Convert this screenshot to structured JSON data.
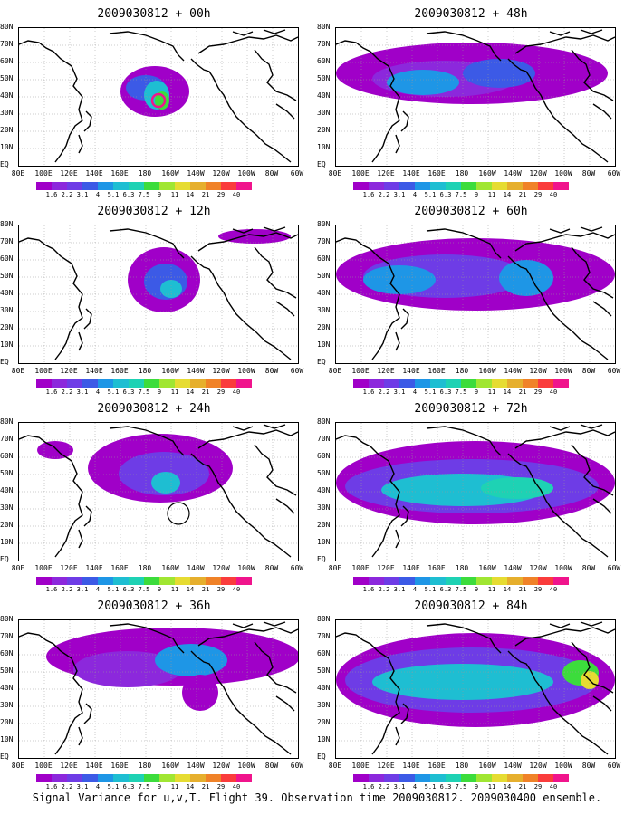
{
  "panels": [
    {
      "title": "2009030812 + 00h"
    },
    {
      "title": "2009030812 + 48h"
    },
    {
      "title": "2009030812 + 12h"
    },
    {
      "title": "2009030812 + 60h"
    },
    {
      "title": "2009030812 + 24h"
    },
    {
      "title": "2009030812 + 72h"
    },
    {
      "title": "2009030812 + 36h"
    },
    {
      "title": "2009030812 + 84h"
    }
  ],
  "lat_labels": [
    "80N",
    "70N",
    "60N",
    "50N",
    "40N",
    "30N",
    "20N",
    "10N",
    "EQ"
  ],
  "lon_labels": [
    "80E",
    "100E",
    "120E",
    "140E",
    "160E",
    "180",
    "160W",
    "140W",
    "120W",
    "100W",
    "80W",
    "60W"
  ],
  "colorbar": {
    "labels": [
      "1.6",
      "2.2",
      "3.1",
      "4",
      "5.1",
      "6.3",
      "7.5",
      "9",
      "11",
      "14",
      "21",
      "29",
      "40"
    ],
    "colors": [
      "#a000c8",
      "#8c28dc",
      "#6e3ce6",
      "#3c5ae6",
      "#1e96e6",
      "#1ebed2",
      "#1ed2b4",
      "#3cdc3c",
      "#a0e632",
      "#e6dc32",
      "#e6af2d",
      "#f08228",
      "#fa3c3c",
      "#f0148c"
    ]
  },
  "footer": "Signal Variance for u,v,T. Flight 39. Observation time 2009030812. 2009030400 ensemble."
}
